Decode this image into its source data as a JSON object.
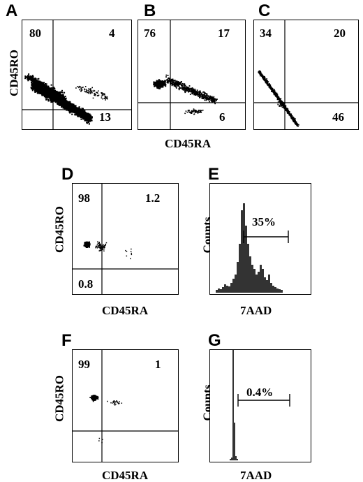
{
  "panels": {
    "A": {
      "letter": "A",
      "quadrants": {
        "upper_left": "80",
        "upper_right": "4",
        "lower_left": "",
        "lower_right": "13"
      }
    },
    "B": {
      "letter": "B",
      "quadrants": {
        "upper_left": "76",
        "upper_right": "17",
        "lower_left": "",
        "lower_right": "6"
      }
    },
    "C": {
      "letter": "C",
      "quadrants": {
        "upper_left": "34",
        "upper_right": "20",
        "lower_left": "",
        "lower_right": "46"
      }
    },
    "D": {
      "letter": "D",
      "quadrants": {
        "upper_left": "98",
        "upper_right": "1.2",
        "lower_left": "0.8",
        "lower_right": ""
      }
    },
    "E": {
      "letter": "E",
      "gate_label": "35%"
    },
    "F": {
      "letter": "F",
      "quadrants": {
        "upper_left": "99",
        "upper_right": "1",
        "lower_left": "",
        "lower_right": ""
      }
    },
    "G": {
      "letter": "G",
      "gate_label": "0.4%"
    }
  },
  "labels": {
    "cd45ro": "CD45RO",
    "cd45ra": "CD45RA",
    "counts": "Counts",
    "aad": "7AAD"
  },
  "chart_data": [
    {
      "panel": "A",
      "type": "scatter",
      "xlabel": "CD45RA",
      "ylabel": "CD45RO",
      "quadrant_percentages": {
        "upper_left": 80,
        "upper_right": 4,
        "lower_right": 13
      }
    },
    {
      "panel": "B",
      "type": "scatter",
      "xlabel": "CD45RA",
      "ylabel": "CD45RO",
      "quadrant_percentages": {
        "upper_left": 76,
        "upper_right": 17,
        "lower_right": 6
      }
    },
    {
      "panel": "C",
      "type": "scatter",
      "xlabel": "CD45RA",
      "ylabel": "CD45RO",
      "quadrant_percentages": {
        "upper_left": 34,
        "upper_right": 20,
        "lower_right": 46
      }
    },
    {
      "panel": "D",
      "type": "scatter",
      "xlabel": "CD45RA",
      "ylabel": "CD45RO",
      "quadrant_percentages": {
        "upper_left": 98,
        "upper_right": 1.2,
        "lower_left": 0.8
      }
    },
    {
      "panel": "E",
      "type": "histogram",
      "xlabel": "7AAD",
      "ylabel": "Counts",
      "gated_percentage": 35
    },
    {
      "panel": "F",
      "type": "scatter",
      "xlabel": "CD45RA",
      "ylabel": "CD45RO",
      "quadrant_percentages": {
        "upper_left": 99,
        "upper_right": 1
      }
    },
    {
      "panel": "G",
      "type": "histogram",
      "xlabel": "7AAD",
      "ylabel": "Counts",
      "gated_percentage": 0.4
    }
  ]
}
